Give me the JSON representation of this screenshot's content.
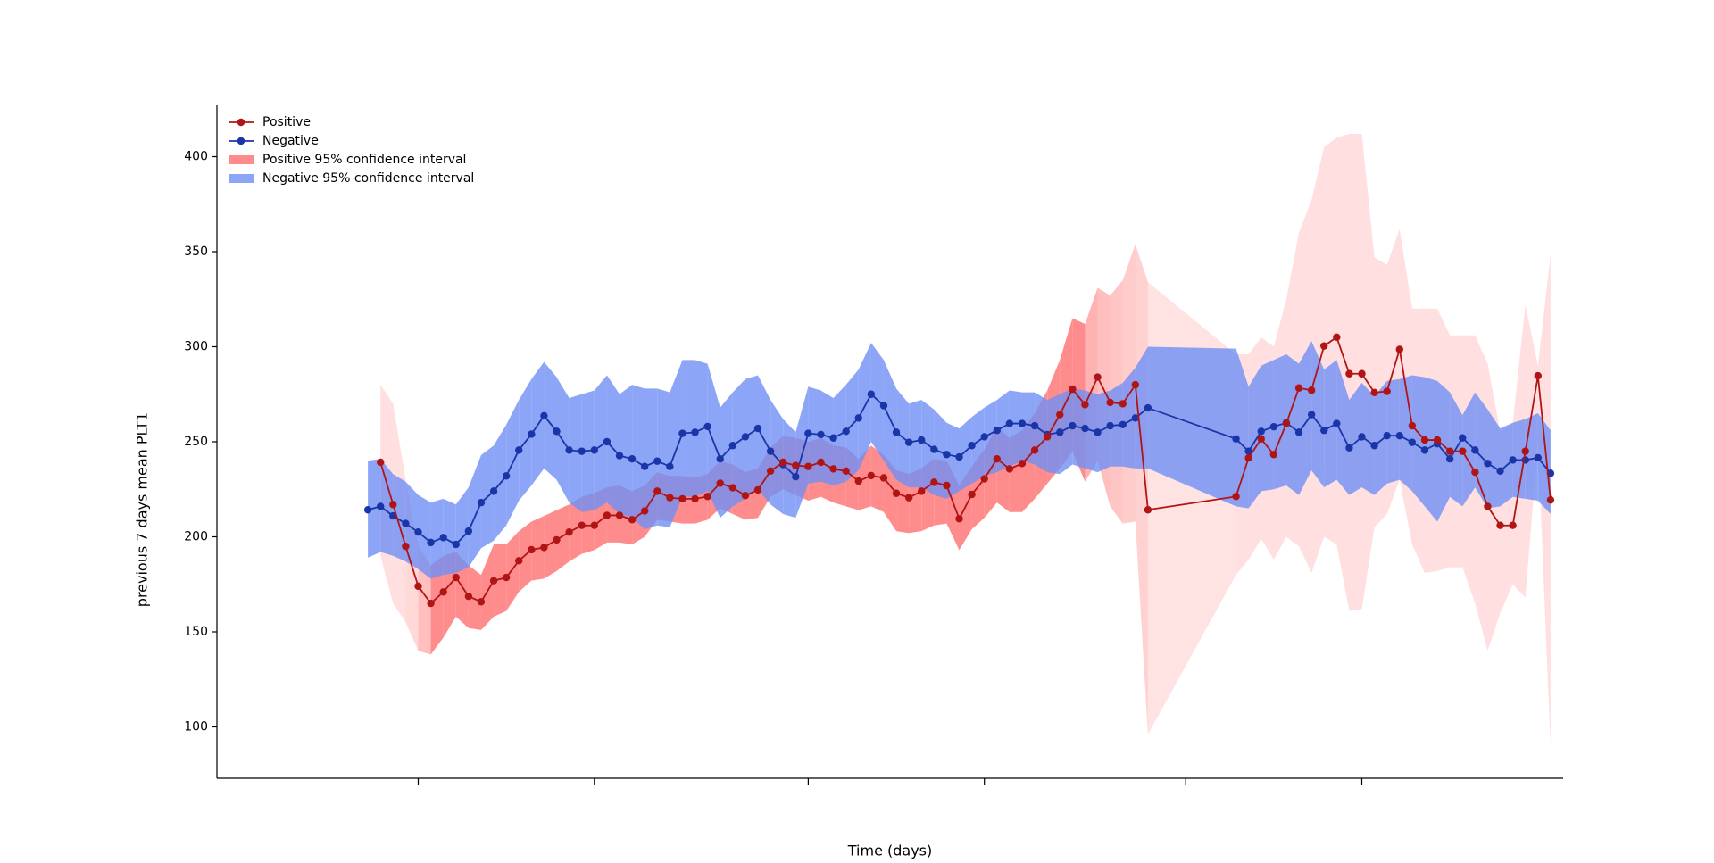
{
  "chart_data": {
    "type": "line",
    "x_label": "Time (days)",
    "y_label": "previous 7 days mean PLT1",
    "xlim": [
      -12,
      95
    ],
    "xticks": [
      4,
      18,
      35,
      49,
      65,
      79
    ],
    "ylim": [
      73,
      427
    ],
    "yticks": [
      100,
      150,
      200,
      250,
      300,
      350,
      400
    ],
    "legend": "upper left",
    "series": [
      {
        "name": "Positive",
        "color": "#b11414",
        "x": [
          1,
          2,
          3,
          4,
          5,
          6,
          7,
          8,
          9,
          10,
          11,
          12,
          13,
          14,
          15,
          16,
          17,
          18,
          19,
          20,
          21,
          22,
          23,
          24,
          25,
          26,
          27,
          28,
          29,
          30,
          31,
          32,
          33,
          34,
          35,
          36,
          37,
          38,
          39,
          40,
          41,
          42,
          43,
          44,
          45,
          46,
          47,
          48,
          49,
          50,
          51,
          52,
          53,
          54,
          55,
          56,
          57,
          58,
          59,
          60,
          61,
          62,
          69,
          70,
          71,
          72,
          73,
          74,
          75,
          76,
          77,
          78,
          79,
          80,
          81,
          82,
          83,
          84,
          85,
          86,
          87,
          88,
          89,
          90,
          91,
          92,
          93,
          94
        ],
        "values": [
          239.2,
          217,
          195,
          174,
          165,
          171,
          178.6,
          168.7,
          165.8,
          176.9,
          178.6,
          187.4,
          193.2,
          194.4,
          198.4,
          202.5,
          206,
          206,
          211.3,
          211.3,
          209,
          213.6,
          224,
          220.6,
          220,
          220,
          221.2,
          228.2,
          225.8,
          221.7,
          224.7,
          234.6,
          239.2,
          237.5,
          237,
          239.2,
          235.7,
          234.6,
          229.3,
          232.2,
          231,
          222.9,
          220.6,
          224,
          228.7,
          227,
          209.5,
          222.3,
          230.5,
          241,
          235.7,
          238.6,
          245.6,
          252.6,
          264.3,
          277.7,
          269.5,
          284,
          270.7,
          270,
          280,
          214.2,
          221.2,
          241.5,
          251.5,
          243.3,
          259.6,
          278.3,
          277.1,
          300.4,
          305,
          285.8,
          285.8,
          275.9,
          276.5,
          298.6,
          258.4,
          250.9,
          250.9,
          245,
          245,
          234,
          216,
          206,
          206,
          245,
          284.7,
          219.4
        ]
      },
      {
        "name": "Negative",
        "color": "#1a35a8",
        "x": [
          0,
          1,
          2,
          3,
          4,
          5,
          6,
          7,
          8,
          9,
          10,
          11,
          12,
          13,
          14,
          15,
          16,
          17,
          18,
          19,
          20,
          21,
          22,
          23,
          24,
          25,
          26,
          27,
          28,
          29,
          30,
          31,
          32,
          33,
          34,
          35,
          36,
          37,
          38,
          39,
          40,
          41,
          42,
          43,
          44,
          45,
          46,
          47,
          48,
          49,
          50,
          51,
          52,
          53,
          54,
          55,
          56,
          57,
          58,
          59,
          60,
          61,
          62,
          69,
          70,
          71,
          72,
          73,
          74,
          75,
          76,
          77,
          78,
          79,
          80,
          81,
          82,
          83,
          84,
          85,
          86,
          87,
          88,
          89,
          90,
          91,
          92,
          93,
          94
        ],
        "values": [
          214.2,
          216,
          211,
          207,
          202.5,
          197,
          199.6,
          196,
          203,
          218,
          224,
          232,
          245.6,
          254,
          263.7,
          255.5,
          245.6,
          245,
          245.6,
          250,
          242.7,
          241,
          237,
          239.8,
          237,
          254.4,
          255,
          258,
          241,
          248,
          252.6,
          257,
          245,
          238,
          231.6,
          254.4,
          253.8,
          252,
          255.5,
          262.5,
          275,
          269,
          255,
          249.7,
          250.9,
          246,
          243.3,
          242,
          248,
          252.6,
          256,
          259.6,
          259.6,
          258.4,
          253.8,
          255,
          258.4,
          257,
          255,
          258.4,
          259,
          262.5,
          267.8,
          251.5,
          245,
          255.5,
          257.9,
          260,
          255,
          264.3,
          256,
          259.6,
          246.8,
          252.6,
          248,
          253.2,
          253.2,
          249.7,
          245.6,
          249,
          241,
          252,
          245.6,
          238.6,
          234.6,
          240.4,
          240.4,
          241.6,
          233.4
        ]
      }
    ],
    "bands": [
      {
        "name": "Positive 95% confidence interval",
        "color": "#ff7f7f",
        "x": [
          1,
          2,
          3,
          4,
          5,
          6,
          7,
          8,
          9,
          10,
          11,
          12,
          13,
          14,
          15,
          16,
          17,
          18,
          19,
          20,
          21,
          22,
          23,
          24,
          25,
          26,
          27,
          28,
          29,
          30,
          31,
          32,
          33,
          34,
          35,
          36,
          37,
          38,
          39,
          40,
          41,
          42,
          43,
          44,
          45,
          46,
          47,
          48,
          49,
          50,
          51,
          52,
          53,
          54,
          55,
          56,
          57,
          58,
          59,
          60,
          61,
          62,
          69,
          70,
          71,
          72,
          73,
          74,
          75,
          76,
          77,
          78,
          79,
          80,
          81,
          82,
          83,
          84,
          85,
          86,
          87,
          88,
          89,
          90,
          91,
          92,
          93,
          94
        ],
        "lower": [
          190,
          165,
          155,
          140,
          138,
          147,
          158,
          152,
          151,
          158,
          161,
          171,
          177,
          178,
          182,
          187,
          191,
          193,
          197,
          197,
          196,
          200,
          209,
          208,
          207,
          207,
          209,
          215,
          212,
          209,
          210,
          221,
          225,
          222,
          219,
          221,
          218,
          216,
          214,
          216,
          213,
          203,
          202,
          203,
          206,
          207,
          193,
          204,
          210,
          218,
          213,
          213,
          220,
          228,
          236,
          245,
          229,
          240,
          216,
          207,
          208,
          96,
          180,
          188,
          199,
          188,
          200,
          195,
          181,
          200,
          196,
          161,
          162,
          205,
          212,
          230,
          196,
          181,
          182,
          184,
          184,
          165,
          140,
          160,
          175,
          168,
          250,
          90
        ],
        "upper": [
          280,
          270,
          230,
          195,
          185,
          190,
          192,
          185,
          180,
          196,
          196,
          203,
          208,
          211,
          214,
          217,
          221,
          223,
          226,
          227,
          224,
          227,
          234,
          232,
          232,
          231,
          233,
          240,
          238,
          234,
          236,
          247,
          253,
          252,
          250,
          252,
          248,
          247,
          241,
          248,
          243,
          235,
          233,
          236,
          241,
          240,
          227,
          237,
          246,
          258,
          252,
          256,
          265,
          277,
          293,
          315,
          312,
          331,
          327,
          335,
          354,
          334,
          296,
          296,
          305,
          300,
          325,
          360,
          377,
          405,
          410,
          412,
          412,
          347,
          343,
          362,
          320,
          320,
          320,
          306,
          306,
          306,
          291,
          255,
          260,
          322,
          290,
          348
        ],
        "alpha": [
          0.25,
          0.25,
          0.3,
          0.5,
          0.9,
          0.9,
          0.9,
          0.9,
          0.9,
          0.9,
          0.9,
          0.9,
          0.9,
          0.9,
          0.9,
          0.9,
          0.9,
          0.9,
          0.9,
          0.9,
          0.9,
          0.9,
          0.9,
          0.9,
          0.9,
          0.9,
          0.9,
          0.9,
          0.9,
          0.9,
          0.9,
          0.9,
          0.9,
          0.9,
          0.9,
          0.9,
          0.9,
          0.9,
          0.9,
          0.9,
          0.9,
          0.9,
          0.9,
          0.9,
          0.9,
          0.9,
          0.9,
          0.9,
          0.9,
          0.9,
          0.9,
          0.9,
          0.9,
          0.9,
          0.9,
          0.9,
          0.6,
          0.5,
          0.45,
          0.4,
          0.35,
          0.22,
          0.25,
          0.25,
          0.25,
          0.25,
          0.25,
          0.25,
          0.25,
          0.25,
          0.25,
          0.25,
          0.25,
          0.25,
          0.25,
          0.25,
          0.25,
          0.25,
          0.25,
          0.25,
          0.25,
          0.25,
          0.25,
          0.25,
          0.25,
          0.25,
          0.25,
          0.25
        ]
      },
      {
        "name": "Negative 95% confidence interval",
        "color": "#6f8ef5",
        "x": [
          0,
          1,
          2,
          3,
          4,
          5,
          6,
          7,
          8,
          9,
          10,
          11,
          12,
          13,
          14,
          15,
          16,
          17,
          18,
          19,
          20,
          21,
          22,
          23,
          24,
          25,
          26,
          27,
          28,
          29,
          30,
          31,
          32,
          33,
          34,
          35,
          36,
          37,
          38,
          39,
          40,
          41,
          42,
          43,
          44,
          45,
          46,
          47,
          48,
          49,
          50,
          51,
          52,
          53,
          54,
          55,
          56,
          57,
          58,
          59,
          60,
          61,
          62,
          69,
          70,
          71,
          72,
          73,
          74,
          75,
          76,
          77,
          78,
          79,
          80,
          81,
          82,
          83,
          84,
          85,
          86,
          87,
          88,
          89,
          90,
          91,
          92,
          93,
          94
        ],
        "lower": [
          189,
          192,
          190,
          187,
          183,
          178,
          180,
          181,
          184,
          194,
          198,
          206,
          219,
          227,
          236,
          230,
          218,
          213,
          214,
          218,
          212,
          210,
          204,
          206,
          205,
          221,
          221,
          224,
          210,
          216,
          220,
          225,
          217,
          212,
          210,
          228,
          229,
          227,
          229,
          235,
          250,
          240,
          230,
          226,
          226,
          222,
          220,
          224,
          228,
          232,
          234,
          237,
          240,
          238,
          234,
          233,
          238,
          236,
          234,
          237,
          237,
          236,
          236,
          216,
          215,
          224,
          225,
          227,
          222,
          235,
          226,
          230,
          222,
          226,
          222,
          228,
          230,
          224,
          216,
          208,
          221,
          216,
          226,
          215,
          216,
          221,
          220,
          219,
          212
        ],
        "upper": [
          240,
          241,
          233,
          229,
          222,
          218,
          220,
          217,
          226,
          243,
          248,
          259,
          272,
          283,
          292,
          284,
          273,
          275,
          277,
          285,
          275,
          280,
          278,
          278,
          276,
          293,
          293,
          291,
          268,
          276,
          283,
          285,
          272,
          262,
          255,
          279,
          277,
          273,
          280,
          288,
          302,
          293,
          278,
          270,
          272,
          267,
          260,
          257,
          263,
          268,
          272,
          277,
          276,
          276,
          272,
          275,
          278,
          277,
          275,
          277,
          281,
          289,
          300,
          299,
          279,
          290,
          293,
          296,
          291,
          303,
          288,
          293,
          272,
          281,
          274,
          282,
          283,
          285,
          284,
          282,
          276,
          264,
          276,
          267,
          257,
          260,
          262,
          265,
          256
        ],
        "alpha": 0.8
      }
    ]
  }
}
